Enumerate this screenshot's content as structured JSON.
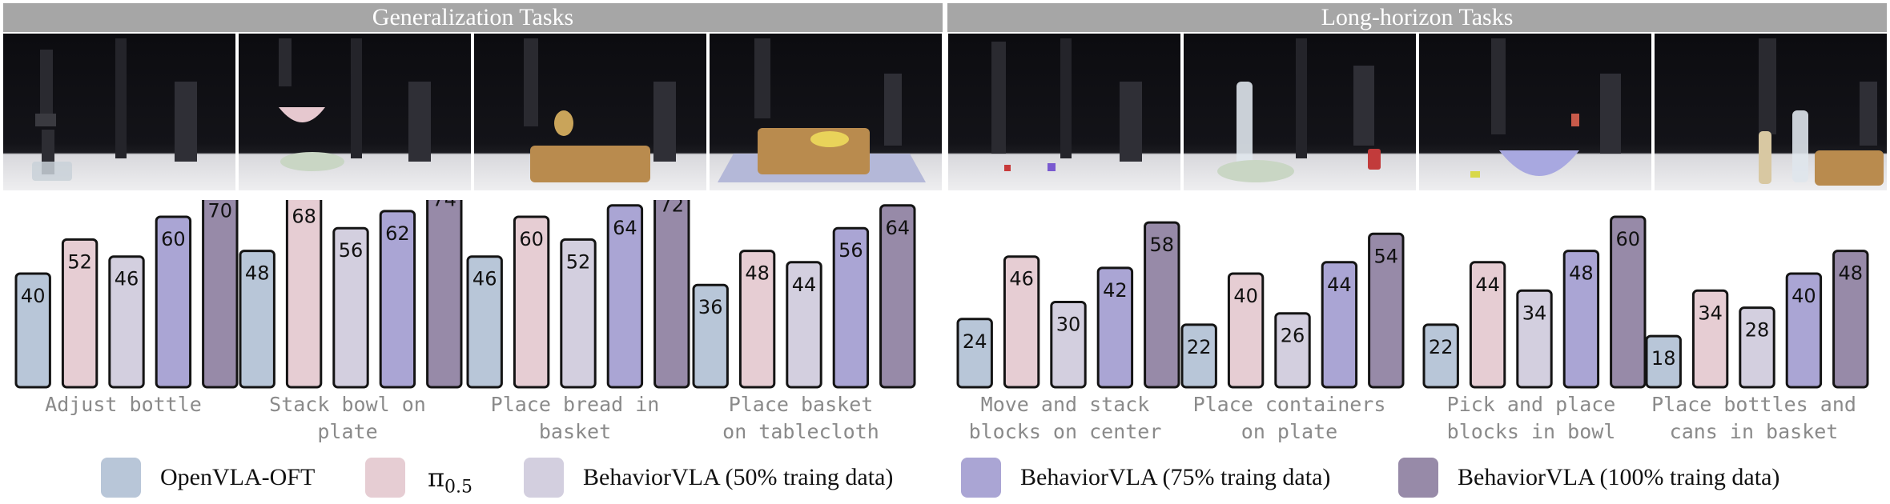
{
  "banners": {
    "generalization": "Generalization Tasks",
    "long_horizon": "Long-horizon Tasks"
  },
  "legend": [
    {
      "label": "OpenVLA-OFT",
      "color": "#b8c6d8"
    },
    {
      "label": "π0.5",
      "symbol": "π",
      "subscript": "0.5",
      "color": "#e6cdd3"
    },
    {
      "label": "BehaviorVLA (50% traing data)",
      "color": "#d3cfdf"
    },
    {
      "label": "BehaviorVLA (75% traing data)",
      "color": "#aaa5d4"
    },
    {
      "label": "BehaviorVLA (100% traing data)",
      "color": "#978aa8"
    }
  ],
  "chart_data": {
    "type": "bar",
    "series": [
      {
        "name": "OpenVLA-OFT",
        "color": "#b8c6d8",
        "values": [
          40,
          48,
          46,
          36,
          24,
          22,
          22,
          18
        ]
      },
      {
        "name": "π0.5",
        "color": "#e6cdd3",
        "values": [
          52,
          68,
          60,
          48,
          46,
          40,
          44,
          34
        ]
      },
      {
        "name": "BehaviorVLA (50% traing data)",
        "color": "#d3cfdf",
        "values": [
          46,
          56,
          52,
          44,
          30,
          26,
          34,
          28
        ]
      },
      {
        "name": "BehaviorVLA (75% traing data)",
        "color": "#aaa5d4",
        "values": [
          60,
          62,
          64,
          56,
          42,
          44,
          48,
          40
        ]
      },
      {
        "name": "BehaviorVLA (100% traing data)",
        "color": "#978aa8",
        "values": [
          70,
          74,
          72,
          64,
          58,
          54,
          60,
          48
        ]
      }
    ],
    "groups": [
      {
        "category": "Generalization Tasks",
        "tasks": [
          {
            "lines": [
              "Adjust bottle"
            ]
          },
          {
            "lines": [
              "Stack bowl on",
              "plate"
            ]
          },
          {
            "lines": [
              "Place bread in",
              "basket"
            ]
          },
          {
            "lines": [
              "Place basket",
              "on tablecloth"
            ]
          }
        ]
      },
      {
        "category": "Long-horizon Tasks",
        "tasks": [
          {
            "lines": [
              "Move and stack",
              "blocks on center"
            ]
          },
          {
            "lines": [
              "Place containers",
              "on plate"
            ]
          },
          {
            "lines": [
              "Pick and place",
              "blocks in bowl"
            ]
          },
          {
            "lines": [
              "Place bottles and",
              "cans in basket"
            ]
          }
        ]
      }
    ],
    "title": "",
    "xlabel": "",
    "ylabel": "",
    "show_y_axis": false,
    "grid": false,
    "legend_position": "bottom"
  }
}
